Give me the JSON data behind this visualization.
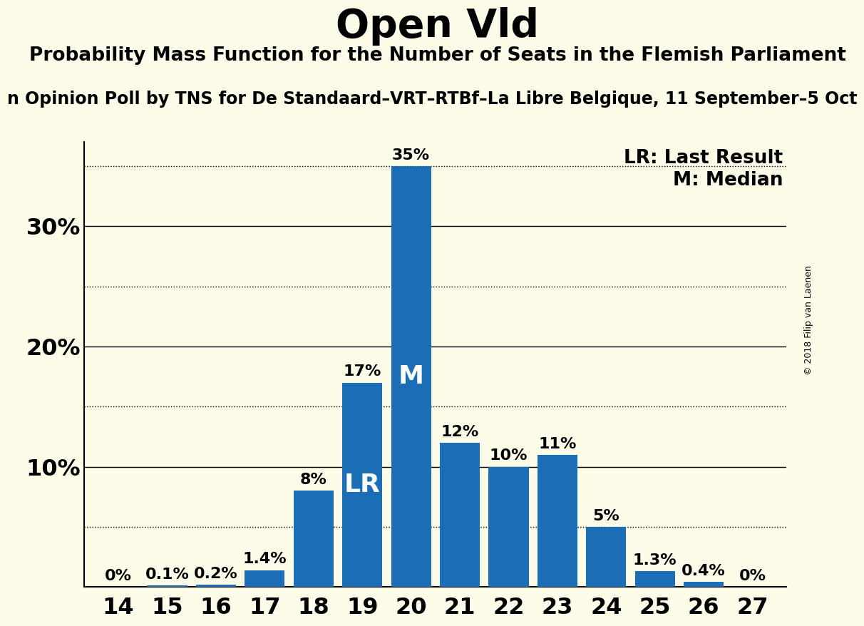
{
  "title": "Open Vld",
  "subtitle": "Probability Mass Function for the Number of Seats in the Flemish Parliament",
  "sub_subtitle": "n Opinion Poll by TNS for De Standaard–VRT–RTBf–La Libre Belgique, 11 September–5 Oct",
  "copyright": "© 2018 Filip van Laenen",
  "categories": [
    14,
    15,
    16,
    17,
    18,
    19,
    20,
    21,
    22,
    23,
    24,
    25,
    26,
    27
  ],
  "values": [
    0.0,
    0.1,
    0.2,
    1.4,
    8.0,
    17.0,
    35.0,
    12.0,
    10.0,
    11.0,
    5.0,
    1.3,
    0.4,
    0.0
  ],
  "labels": [
    "0%",
    "0.1%",
    "0.2%",
    "1.4%",
    "8%",
    "17%",
    "35%",
    "12%",
    "10%",
    "11%",
    "5%",
    "1.3%",
    "0.4%",
    "0%"
  ],
  "bar_color": "#1b6eb5",
  "background_color": "#fdfce8",
  "dotted_lines": [
    5,
    15,
    25,
    35
  ],
  "solid_lines": [
    10,
    20,
    30
  ],
  "lr_bar": 19,
  "median_bar": 20,
  "lr_label": "LR",
  "median_label": "M",
  "legend_lr": "LR: Last Result",
  "legend_m": "M: Median",
  "ylim": [
    0,
    37
  ],
  "title_fontsize": 40,
  "subtitle_fontsize": 19,
  "sub_subtitle_fontsize": 17,
  "axis_fontsize": 23,
  "bar_label_fontsize": 16,
  "legend_fontsize": 19,
  "inside_label_fontsize": 26
}
